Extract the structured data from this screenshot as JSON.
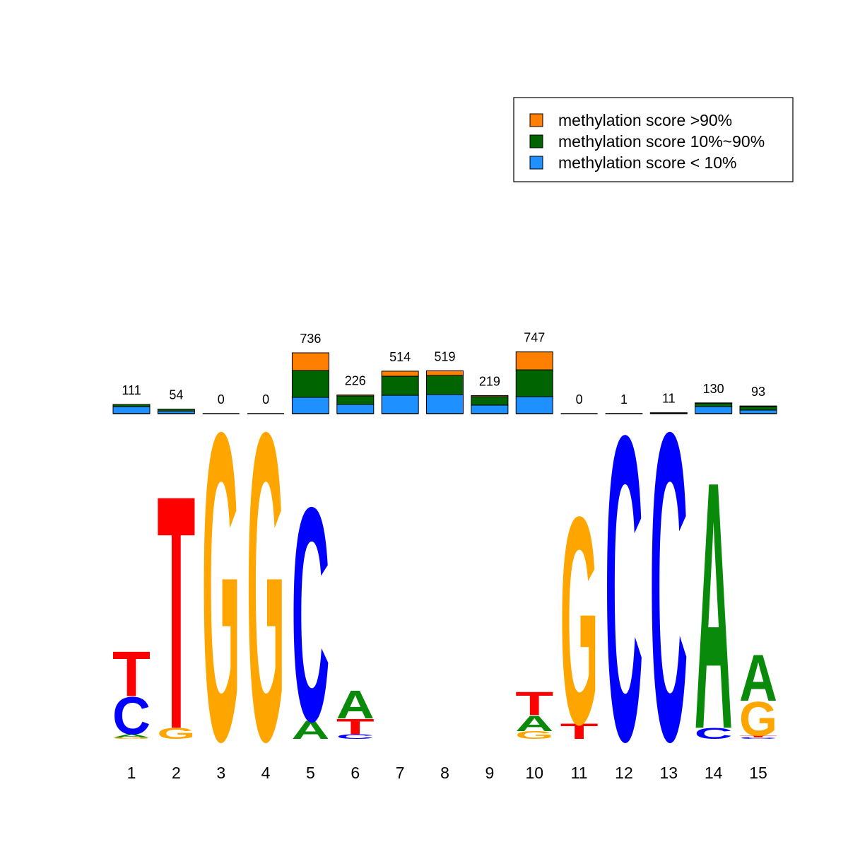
{
  "chart_data": {
    "type": "logo",
    "categories": [
      "1",
      "2",
      "3",
      "4",
      "5",
      "6",
      "7",
      "8",
      "9",
      "10",
      "11",
      "12",
      "13",
      "14",
      "15"
    ],
    "series": [
      {
        "name": "methylation score >90%",
        "color": "#ff7f00",
        "values": [
          0,
          0,
          0,
          0,
          214,
          12,
          61,
          57,
          13,
          217,
          0,
          0,
          0,
          4,
          7
        ]
      },
      {
        "name": "methylation score 10%~90%",
        "color": "#006400",
        "values": [
          26,
          24,
          0,
          0,
          325,
          103,
          231,
          231,
          103,
          325,
          0,
          0,
          5,
          40,
          43
        ]
      },
      {
        "name": "methylation score < 10%",
        "color": "#1e90ff",
        "values": [
          85,
          30,
          0,
          0,
          197,
          111,
          222,
          231,
          103,
          205,
          0,
          1,
          6,
          86,
          43
        ]
      }
    ],
    "totals": [
      "111",
      "54",
      "0",
      "0",
      "736",
      "226",
      "514",
      "519",
      "219",
      "747",
      "0",
      "1",
      "11",
      "130",
      "93"
    ],
    "letter_colors": {
      "A": "#0a8a0a",
      "C": "#0000ff",
      "G": "#ffa500",
      "T": "#ff0000"
    },
    "logo": [
      [
        {
          "letter": "G",
          "value": 0.01
        },
        {
          "letter": "A",
          "value": 0.02
        },
        {
          "letter": "C",
          "value": 0.24
        },
        {
          "letter": "T",
          "value": 0.29
        }
      ],
      [
        {
          "letter": "G",
          "value": 0.07
        },
        {
          "letter": "T",
          "value": 1.51
        }
      ],
      [
        {
          "letter": "G",
          "value": 1.99
        }
      ],
      [
        {
          "letter": "G",
          "value": 1.99
        }
      ],
      [
        {
          "letter": "A",
          "value": 0.12
        },
        {
          "letter": "C",
          "value": 1.38
        }
      ],
      [
        {
          "letter": "C",
          "value": 0.03
        },
        {
          "letter": "T",
          "value": 0.1
        },
        {
          "letter": "A",
          "value": 0.18
        }
      ],
      [],
      [],
      [],
      [
        {
          "letter": "G",
          "value": 0.05
        },
        {
          "letter": "A",
          "value": 0.1
        },
        {
          "letter": "T",
          "value": 0.15
        }
      ],
      [
        {
          "letter": "T",
          "value": 0.1
        },
        {
          "letter": "G",
          "value": 1.34
        }
      ],
      [
        {
          "letter": "C",
          "value": 1.97
        }
      ],
      [
        {
          "letter": "C",
          "value": 1.99
        }
      ],
      [
        {
          "letter": "C",
          "value": 0.07
        },
        {
          "letter": "A",
          "value": 1.6
        }
      ],
      [
        {
          "letter": "C",
          "value": 0.01
        },
        {
          "letter": "T",
          "value": 0.01
        },
        {
          "letter": "G",
          "value": 0.22
        },
        {
          "letter": "A",
          "value": 0.3
        }
      ]
    ]
  }
}
